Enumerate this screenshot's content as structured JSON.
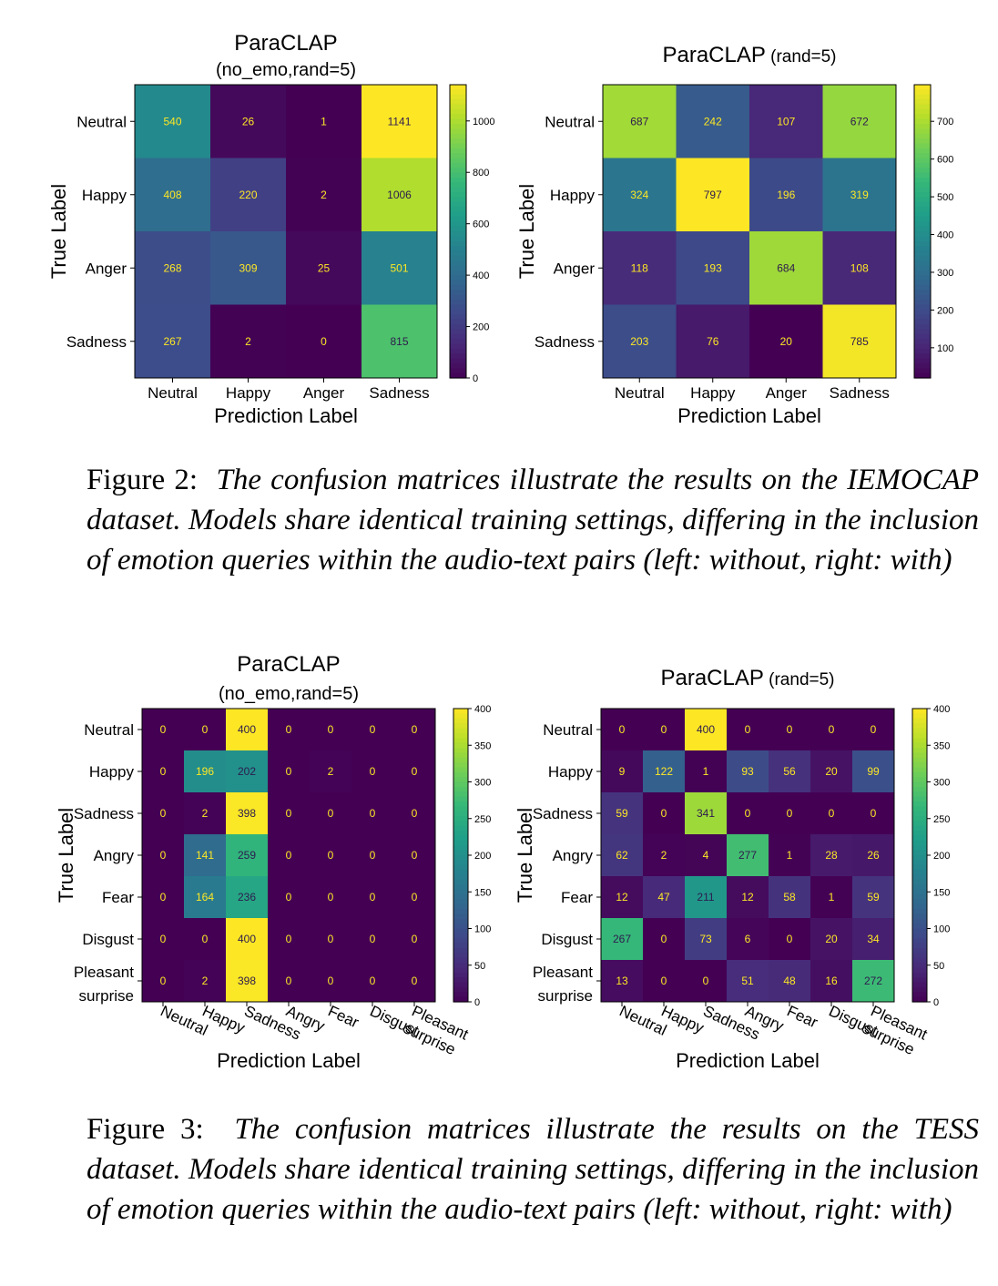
{
  "figures": [
    {
      "label": "Figure 2:",
      "text": "The confusion matrices illustrate the results on the IEMOCAP dataset.  Models share identical training settings, differing in the inclusion of emotion queries within the audio-text pairs (left: without, right: with)"
    },
    {
      "label": "Figure 3:",
      "text": "The confusion matrices illustrate the results on the TESS dataset. Models share identical training settings, differing in the inclusion of emotion queries within the audio-text pairs (left: without, right: with)"
    }
  ],
  "chart_data": [
    {
      "type": "heatmap",
      "title": "ParaCLAP",
      "subtitle": "(no_emo,rand=5)",
      "xlabel": "Prediction Label",
      "ylabel": "True Label",
      "x_categories": [
        "Neutral",
        "Happy",
        "Anger",
        "Sadness"
      ],
      "y_categories": [
        "Neutral",
        "Happy",
        "Anger",
        "Sadness"
      ],
      "values": [
        [
          540,
          26,
          1,
          1141
        ],
        [
          408,
          220,
          2,
          1006
        ],
        [
          268,
          309,
          25,
          501
        ],
        [
          267,
          2,
          0,
          815
        ]
      ],
      "colorbar": {
        "min": 0,
        "max": 1141,
        "ticks": [
          0,
          200,
          400,
          600,
          800,
          1000
        ]
      },
      "colormap": "viridis"
    },
    {
      "type": "heatmap",
      "title": "ParaCLAP",
      "subtitle": "(rand=5)",
      "xlabel": "Prediction Label",
      "ylabel": "True Label",
      "x_categories": [
        "Neutral",
        "Happy",
        "Anger",
        "Sadness"
      ],
      "y_categories": [
        "Neutral",
        "Happy",
        "Anger",
        "Sadness"
      ],
      "values": [
        [
          687,
          242,
          107,
          672
        ],
        [
          324,
          797,
          196,
          319
        ],
        [
          118,
          193,
          684,
          108
        ],
        [
          203,
          76,
          20,
          785
        ]
      ],
      "colorbar": {
        "min": 20,
        "max": 797,
        "ticks": [
          100,
          200,
          300,
          400,
          500,
          600,
          700
        ]
      },
      "colormap": "viridis"
    },
    {
      "type": "heatmap",
      "title": "ParaCLAP",
      "subtitle": "(no_emo,rand=5)",
      "xlabel": "Prediction Label",
      "ylabel": "True Label",
      "x_categories": [
        "Neutral",
        "Happy",
        "Sadness",
        "Angry",
        "Fear",
        "Disgust",
        "Pleasant surprise"
      ],
      "y_categories": [
        "Neutral",
        "Happy",
        "Sadness",
        "Angry",
        "Fear",
        "Disgust",
        "Pleasant surprise"
      ],
      "values": [
        [
          0,
          0,
          400,
          0,
          0,
          0,
          0
        ],
        [
          0,
          196,
          202,
          0,
          2,
          0,
          0
        ],
        [
          0,
          2,
          398,
          0,
          0,
          0,
          0
        ],
        [
          0,
          141,
          259,
          0,
          0,
          0,
          0
        ],
        [
          0,
          164,
          236,
          0,
          0,
          0,
          0
        ],
        [
          0,
          0,
          400,
          0,
          0,
          0,
          0
        ],
        [
          0,
          2,
          398,
          0,
          0,
          0,
          0
        ]
      ],
      "colorbar": {
        "min": 0,
        "max": 400,
        "ticks": [
          0,
          50,
          100,
          150,
          200,
          250,
          300,
          350,
          400
        ]
      },
      "colormap": "viridis"
    },
    {
      "type": "heatmap",
      "title": "ParaCLAP",
      "subtitle": "(rand=5)",
      "xlabel": "Prediction Label",
      "ylabel": "True Label",
      "x_categories": [
        "Neutral",
        "Happy",
        "Sadness",
        "Angry",
        "Fear",
        "Disgust",
        "Pleasant surprise"
      ],
      "y_categories": [
        "Neutral",
        "Happy",
        "Sadness",
        "Angry",
        "Fear",
        "Disgust",
        "Pleasant surprise"
      ],
      "values": [
        [
          0,
          0,
          400,
          0,
          0,
          0,
          0
        ],
        [
          9,
          122,
          1,
          93,
          56,
          20,
          99
        ],
        [
          59,
          0,
          341,
          0,
          0,
          0,
          0
        ],
        [
          62,
          2,
          4,
          277,
          1,
          28,
          26
        ],
        [
          12,
          47,
          211,
          12,
          58,
          1,
          59
        ],
        [
          267,
          0,
          73,
          6,
          0,
          20,
          34
        ],
        [
          13,
          0,
          0,
          51,
          48,
          16,
          272
        ]
      ],
      "colorbar": {
        "min": 0,
        "max": 400,
        "ticks": [
          0,
          50,
          100,
          150,
          200,
          250,
          300,
          350,
          400
        ]
      },
      "colormap": "viridis"
    }
  ]
}
